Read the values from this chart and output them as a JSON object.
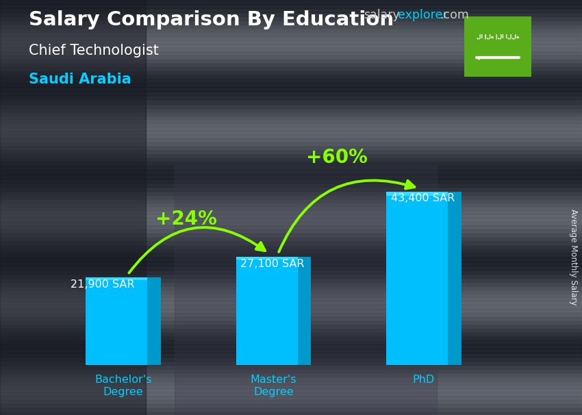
{
  "title_line1": "Salary Comparison By Education",
  "subtitle": "Chief Technologist",
  "country": "Saudi Arabia",
  "ylabel": "Average Monthly Salary",
  "categories": [
    "Bachelor's\nDegree",
    "Master's\nDegree",
    "PhD"
  ],
  "values": [
    21900,
    27100,
    43400
  ],
  "value_labels": [
    "21,900 SAR",
    "27,100 SAR",
    "43,400 SAR"
  ],
  "bar_color": "#00BFFF",
  "bar_shade_color": "#0099CC",
  "pct_labels": [
    "+24%",
    "+60%"
  ],
  "bg_dark": "#2a2a3a",
  "bg_mid": "#3d3d4d",
  "title_color": "#FFFFFF",
  "subtitle_color": "#FFFFFF",
  "country_color": "#00CFFF",
  "value_label_color": "#FFFFFF",
  "pct_color": "#88FF00",
  "arrow_color": "#88FF00",
  "watermark_salary_color": "#CCCCCC",
  "watermark_explorer_color": "#00CFFF",
  "watermark_com_color": "#CCCCCC",
  "flag_bg_color": "#5AAD1A",
  "xticklabel_color": "#00CFFF",
  "ylim": [
    0,
    55000
  ],
  "bar_positions": [
    0,
    1,
    2
  ],
  "bar_width": 0.5
}
